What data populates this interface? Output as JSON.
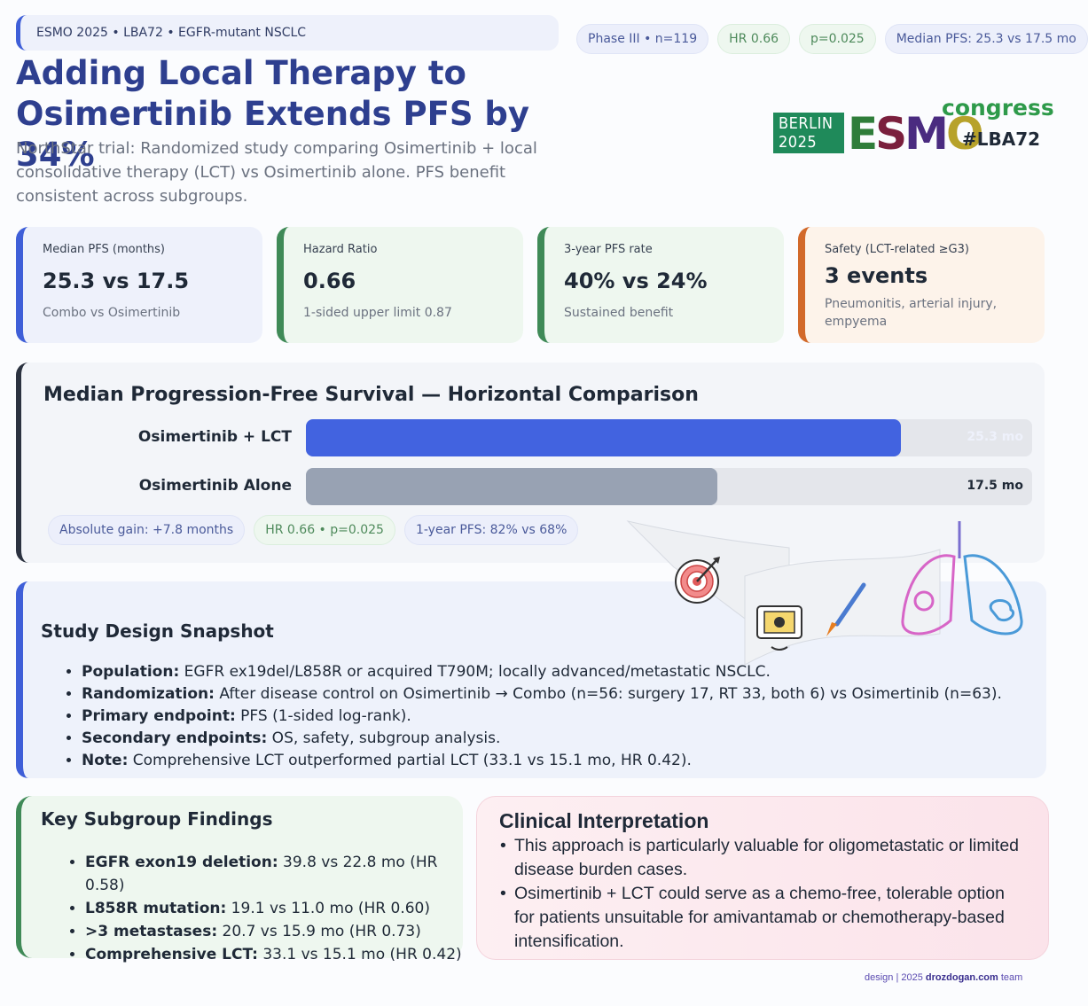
{
  "header": {
    "tagline": "ESMO 2025 • LBA72 • EGFR-mutant NSCLC",
    "pills": [
      "Phase III • n=119",
      "HR 0.66",
      "p=0.025",
      "Median PFS: 25.3 vs 17.5 mo"
    ],
    "title_line1": "Adding Local Therapy to",
    "title_line2": "Osimertinib Extends PFS by 34%",
    "subtitle": "NorthStar trial: Randomized study comparing Osimertinib + local consolidative therapy (LCT) vs Osimertinib alone. PFS benefit consistent across subgroups."
  },
  "logo": {
    "berlin": "BERLIN",
    "year": "2025",
    "esmo": "ESMO",
    "congress": "congress",
    "hashtag": "#LBA72"
  },
  "stats": [
    {
      "label": "Median PFS (months)",
      "value": "25.3 vs 17.5",
      "sub": "Combo vs Osimertinib"
    },
    {
      "label": "Hazard Ratio",
      "value": "0.66",
      "sub": "1-sided upper limit 0.87"
    },
    {
      "label": "3-year PFS rate",
      "value": "40% vs 24%",
      "sub": "Sustained benefit"
    },
    {
      "label": "Safety (LCT-related ≥G3)",
      "value": "3 events",
      "sub": "Pneumonitis, arterial injury, empyema"
    }
  ],
  "chart_data": {
    "type": "bar",
    "orientation": "horizontal",
    "title": "Median Progression-Free Survival — Horizontal Comparison",
    "categories": [
      "Osimertinib + LCT",
      "Osimertinib Alone"
    ],
    "values": [
      25.3,
      17.5
    ],
    "value_labels": [
      "25.3 mo",
      "17.5 mo"
    ],
    "xlim": [
      0,
      30.9
    ],
    "colors": [
      "#4263e0",
      "#98a2b3"
    ],
    "chips": [
      "Absolute gain: +7.8 months",
      "HR 0.66 • p=0.025",
      "1-year PFS: 82% vs 68%"
    ]
  },
  "design": {
    "heading": "Study Design Snapshot",
    "items": [
      {
        "key": "Population:",
        "text": " EGFR ex19del/L858R or acquired T790M; locally advanced/metastatic NSCLC."
      },
      {
        "key": "Randomization:",
        "text": " After disease control on Osimertinib → Combo (n=56: surgery 17, RT 33, both 6) vs Osimertinib (n=63)."
      },
      {
        "key": "Primary endpoint:",
        "text": " PFS (1-sided log-rank)."
      },
      {
        "key": "Secondary endpoints:",
        "text": " OS, safety, subgroup analysis."
      },
      {
        "key": "Note:",
        "text": " Comprehensive LCT outperformed partial LCT (33.1 vs 15.1 mo, HR 0.42)."
      }
    ]
  },
  "subgroups": {
    "heading": "Key Subgroup Findings",
    "items": [
      {
        "key": "EGFR exon19 deletion:",
        "text": " 39.8 vs 22.8 mo (HR 0.58)"
      },
      {
        "key": "L858R mutation:",
        "text": " 19.1 vs 11.0 mo (HR 0.60)"
      },
      {
        "key": ">3 metastases:",
        "text": " 20.7 vs 15.9 mo (HR 0.73)"
      },
      {
        "key": "Comprehensive LCT:",
        "text": " 33.1 vs 15.1 mo (HR 0.42)"
      }
    ]
  },
  "interpretation": {
    "heading": "Clinical Interpretation",
    "items": [
      "This approach is particularly valuable for oligometastatic or limited disease burden cases.",
      "Osimertinib + LCT could serve as a chemo-free, tolerable option for patients unsuitable for amivantamab or chemotherapy-based intensification."
    ]
  },
  "footer": {
    "prefix": "design | 2025 ",
    "site": "drozdogan.com",
    "suffix": " team"
  }
}
